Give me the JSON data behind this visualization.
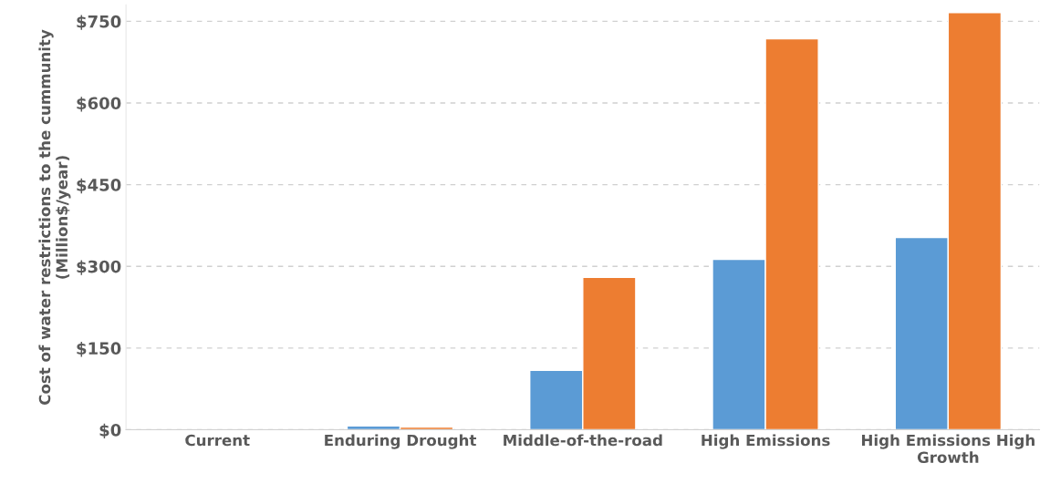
{
  "chart_data": {
    "type": "bar",
    "ylabel": "Cost of water restrictions to the cummunity\n(Million$/year)",
    "categories": [
      "Current",
      "Enduring Drought",
      "Middle-of-the-road",
      "High Emissions",
      "High Emissions High\nGrowth"
    ],
    "series": [
      {
        "color": "#5b9bd5",
        "values": [
          null,
          7,
          109,
          313,
          353
        ]
      },
      {
        "color": "#ed7d31",
        "values": [
          null,
          5,
          280,
          718,
          766
        ]
      }
    ],
    "ylim": [
      0,
      780
    ],
    "yticks": [
      {
        "value": 0,
        "label": "$0"
      },
      {
        "value": 150,
        "label": "$150"
      },
      {
        "value": 300,
        "label": "$300"
      },
      {
        "value": 450,
        "label": "$450"
      },
      {
        "value": 600,
        "label": "$600"
      },
      {
        "value": 750,
        "label": "$750"
      }
    ],
    "grid": "y",
    "legend": false
  }
}
